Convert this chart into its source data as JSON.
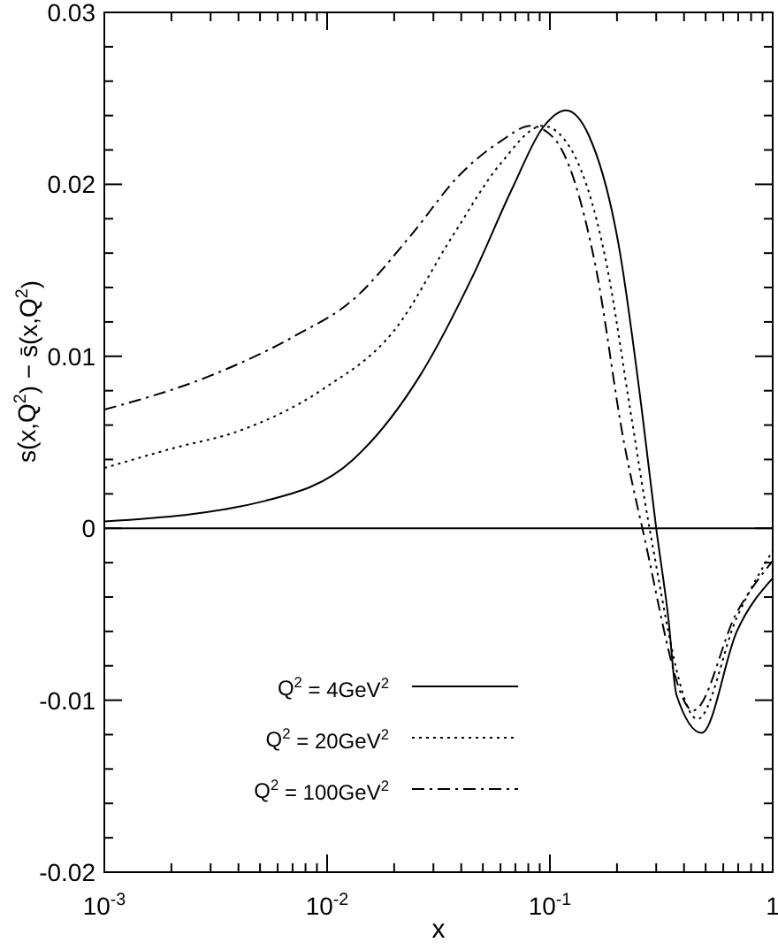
{
  "chart_data": {
    "type": "line",
    "xlabel": "x",
    "ylabel": "s(x,Q$^{2}$) − s̄(x,Q$^{2}$)",
    "log": "x",
    "xlim": [
      0.001,
      1
    ],
    "ylim": [
      -0.02,
      0.03
    ],
    "xticks": [
      {
        "value": 0.001,
        "label": "10$^{-3}$"
      },
      {
        "value": 0.002,
        "label": null
      },
      {
        "value": 0.003,
        "label": null
      },
      {
        "value": 0.004,
        "label": null
      },
      {
        "value": 0.005,
        "label": null
      },
      {
        "value": 0.006,
        "label": null
      },
      {
        "value": 0.007,
        "label": null
      },
      {
        "value": 0.008,
        "label": null
      },
      {
        "value": 0.009,
        "label": null
      },
      {
        "value": 0.01,
        "label": "10$^{-2}$"
      },
      {
        "value": 0.02,
        "label": null
      },
      {
        "value": 0.03,
        "label": null
      },
      {
        "value": 0.04,
        "label": null
      },
      {
        "value": 0.05,
        "label": null
      },
      {
        "value": 0.06,
        "label": null
      },
      {
        "value": 0.07,
        "label": null
      },
      {
        "value": 0.08,
        "label": null
      },
      {
        "value": 0.09,
        "label": null
      },
      {
        "value": 0.1,
        "label": "10$^{-1}$"
      },
      {
        "value": 0.2,
        "label": null
      },
      {
        "value": 0.3,
        "label": null
      },
      {
        "value": 0.4,
        "label": null
      },
      {
        "value": 0.5,
        "label": null
      },
      {
        "value": 0.6,
        "label": null
      },
      {
        "value": 0.7,
        "label": null
      },
      {
        "value": 0.8,
        "label": null
      },
      {
        "value": 0.9,
        "label": null
      },
      1
    ],
    "yticks": [
      -0.02,
      {
        "value": -0.018,
        "label": null
      },
      {
        "value": -0.016,
        "label": null
      },
      {
        "value": -0.014,
        "label": null
      },
      {
        "value": -0.012,
        "label": null
      },
      -0.01,
      {
        "value": -0.008,
        "label": null
      },
      {
        "value": -0.006,
        "label": null
      },
      {
        "value": -0.004,
        "label": null
      },
      {
        "value": -0.002,
        "label": null
      },
      0,
      {
        "value": 0.002,
        "label": null
      },
      {
        "value": 0.004,
        "label": null
      },
      {
        "value": 0.006,
        "label": null
      },
      {
        "value": 0.008,
        "label": null
      },
      0.01,
      {
        "value": 0.012,
        "label": null
      },
      {
        "value": 0.014,
        "label": null
      },
      {
        "value": 0.016,
        "label": null
      },
      {
        "value": 0.018,
        "label": null
      },
      0.02,
      {
        "value": 0.022,
        "label": null
      },
      {
        "value": 0.024,
        "label": null
      },
      {
        "value": 0.026,
        "label": null
      },
      {
        "value": 0.028,
        "label": null
      },
      0.03
    ],
    "grid": false,
    "legend": "bottom left",
    "ref_lines": [
      {
        "axis": "y",
        "value": 0
      }
    ],
    "series": [
      {
        "name": "Q$^{2}$ =   4GeV$^{2}$",
        "color": "#000000",
        "line_style": "solid",
        "x": [
          0.001,
          0.0053,
          0.0131,
          0.0259,
          0.0448,
          0.068,
          0.093,
          0.118,
          0.15,
          0.204,
          0.259,
          0.3,
          0.34,
          0.37,
          0.48,
          0.69,
          1
        ],
        "values": [
          0.0004,
          0.0016,
          0.004,
          0.0088,
          0.0146,
          0.0198,
          0.0233,
          0.0243,
          0.0228,
          0.0164,
          0.0068,
          0,
          -0.0052,
          -0.0097,
          -0.0119,
          -0.006,
          -0.0029
        ]
      },
      {
        "name": "Q$^{2}$ =   20GeV$^{2}$",
        "color": "#000000",
        "line_style": "dotted",
        "x": [
          0.001,
          0.0021,
          0.0039,
          0.0096,
          0.02,
          0.037,
          0.06,
          0.093,
          0.118,
          0.18,
          0.23,
          0.28,
          0.46,
          0.69,
          1
        ],
        "values": [
          0.0035,
          0.0047,
          0.0056,
          0.0081,
          0.0115,
          0.0171,
          0.0212,
          0.0234,
          0.0225,
          0.0153,
          0.0068,
          0,
          -0.0111,
          -0.0052,
          -0.0013
        ]
      },
      {
        "name": "Q$^{2}$ = 100GeV$^{2}$",
        "color": "#000000",
        "line_style": "dashdot",
        "x": [
          0.001,
          0.0029,
          0.0072,
          0.0131,
          0.024,
          0.039,
          0.06,
          0.082,
          0.104,
          0.16,
          0.215,
          0.26,
          0.44,
          0.69,
          1
        ],
        "values": [
          0.0069,
          0.0088,
          0.0112,
          0.0133,
          0.0171,
          0.0205,
          0.0225,
          0.0234,
          0.0227,
          0.0153,
          0.005,
          0,
          -0.0106,
          -0.0049,
          -0.0019
        ]
      }
    ]
  }
}
